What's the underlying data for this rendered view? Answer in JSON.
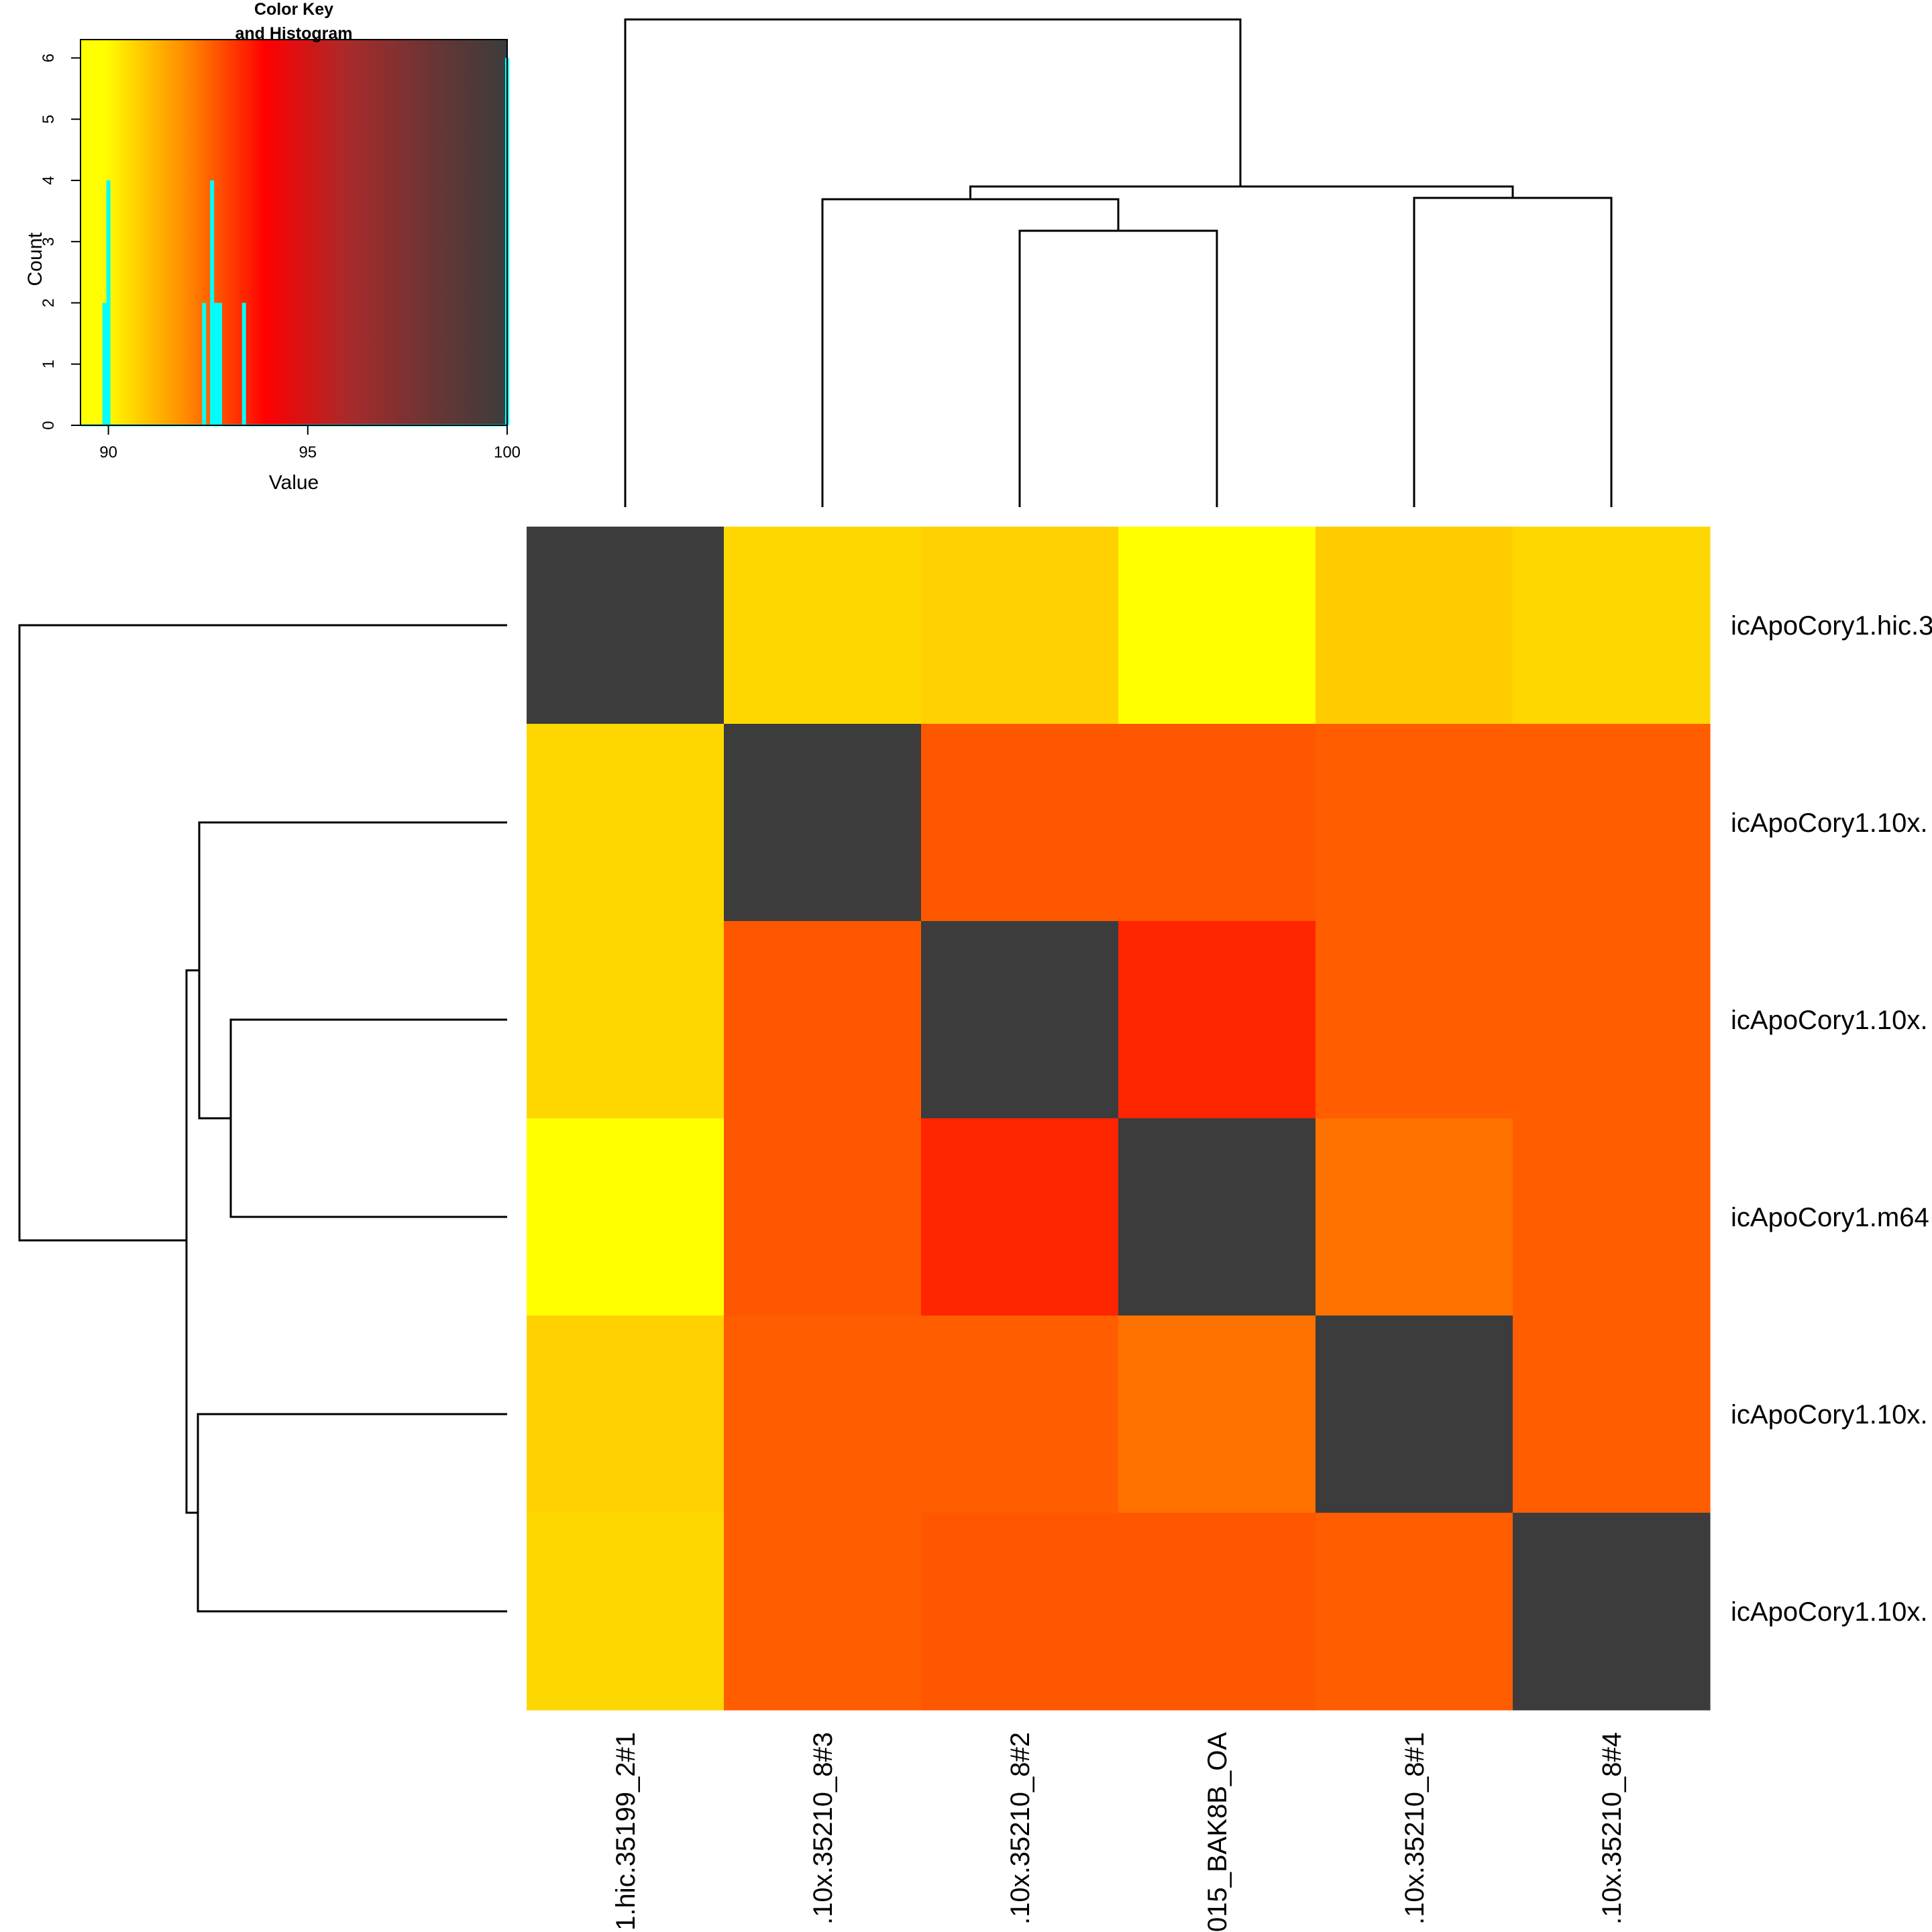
{
  "chart_data": [
    {
      "type": "heatmap",
      "title": "",
      "row_labels": [
        "icApoCory1.hic.3",
        "icApoCory1.10x.",
        "icApoCory1.10x.",
        "icApoCory1.m64",
        "icApoCory1.10x.",
        "icApoCory1.10x."
      ],
      "column_labels": [
        "1.hic.35199_2#1",
        ".10x.35210_8#3",
        ".10x.35210_8#2",
        "015_BAK8B_OA",
        ".10x.35210_8#1",
        ".10x.35210_8#4"
      ],
      "values": [
        [
          100,
          90.6,
          90.7,
          89.9,
          90.8,
          90.6
        ],
        [
          90.6,
          100,
          92.7,
          92.7,
          92.6,
          92.6
        ],
        [
          90.6,
          92.7,
          100,
          93.4,
          92.6,
          92.6
        ],
        [
          89.9,
          92.7,
          93.4,
          100,
          92.3,
          92.6
        ],
        [
          90.7,
          92.6,
          92.6,
          92.3,
          100,
          92.6
        ],
        [
          90.6,
          92.6,
          92.7,
          92.7,
          92.6,
          100
        ]
      ],
      "color_scale": {
        "min": 89.9,
        "max": 100,
        "colors": [
          "#ffff00",
          "#ff8c00",
          "#ff0000",
          "#aa2a2a",
          "#6e3434",
          "#3c3c3c"
        ]
      },
      "row_dendrogram": "present (left)",
      "column_dendrogram": "present (top)"
    },
    {
      "type": "bar",
      "title": "Color Key\nand Histogram",
      "xlabel": "Value",
      "ylabel": "Count",
      "xlim": [
        89.3,
        100
      ],
      "ylim": [
        0,
        6.3
      ],
      "x_ticks": [
        90,
        95,
        100
      ],
      "y_ticks": [
        0,
        1,
        2,
        3,
        4,
        5,
        6
      ],
      "histogram_color": "#00ffff",
      "bins": [
        {
          "value": 89.9,
          "count": 2
        },
        {
          "value": 90.0,
          "count": 4
        },
        {
          "value": 92.4,
          "count": 2
        },
        {
          "value": 92.6,
          "count": 4
        },
        {
          "value": 92.7,
          "count": 2
        },
        {
          "value": 92.8,
          "count": 2
        },
        {
          "value": 93.4,
          "count": 2
        },
        {
          "value": 100.0,
          "count": 6
        }
      ]
    }
  ]
}
